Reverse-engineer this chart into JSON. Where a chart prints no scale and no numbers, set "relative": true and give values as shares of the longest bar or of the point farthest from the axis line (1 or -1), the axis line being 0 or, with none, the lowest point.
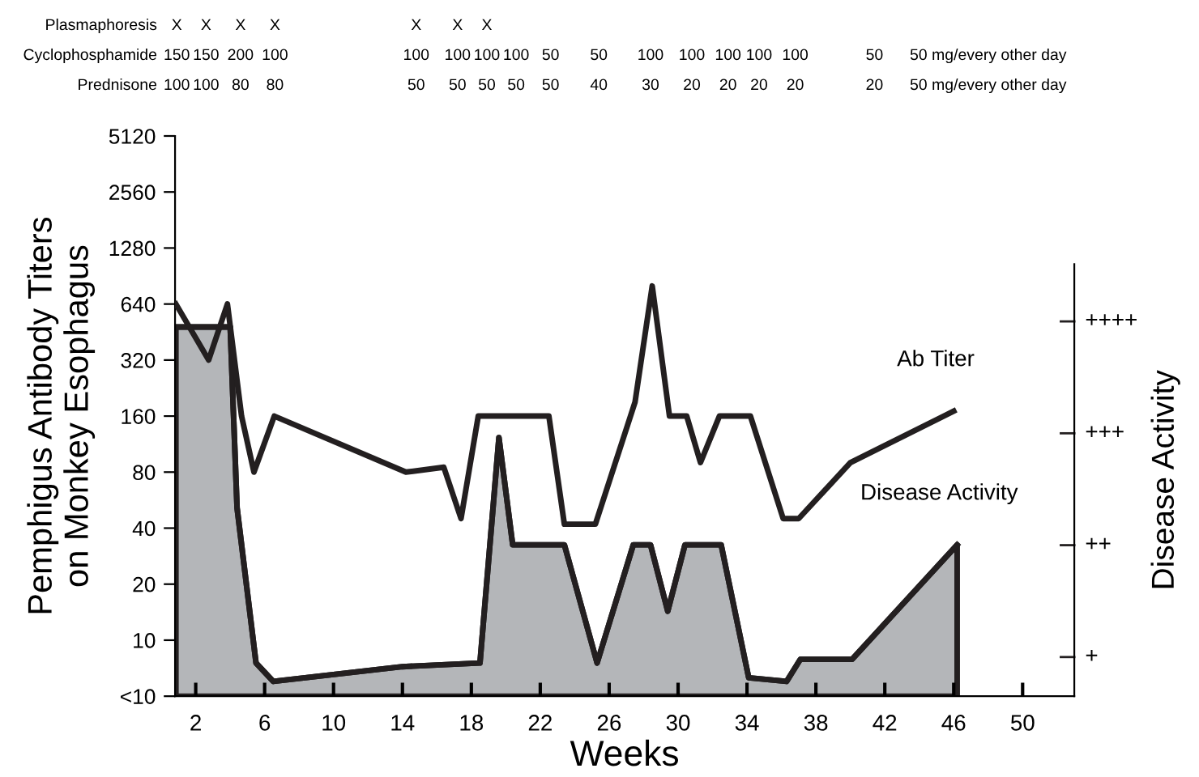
{
  "chart_data": [
    {
      "type": "line",
      "xlabel": "Weeks",
      "ylabel": "Pemphigus Antibody Titers\non Monkey Esophagus",
      "x": [
        0.85,
        2.75,
        3.84,
        4.66,
        5.38,
        6.56,
        14.2,
        16.4,
        17.4,
        18.4,
        22.5,
        23.4,
        25.2,
        27.5,
        28.5,
        29.5,
        30.5,
        31.3,
        32.4,
        34.2,
        36.1,
        37.0,
        40.0,
        46.0
      ],
      "series": [
        {
          "name": "Ab Titer",
          "color": "#231f20",
          "values": [
            640,
            320,
            640,
            160,
            80,
            160,
            80,
            85,
            45,
            160,
            160,
            42,
            42,
            190,
            800,
            160,
            160,
            90,
            160,
            160,
            45,
            45,
            90,
            170
          ]
        }
      ],
      "log": "y",
      "xlim": [
        0.8,
        53
      ],
      "xticks": [
        2,
        6,
        10,
        14,
        18,
        22,
        26,
        30,
        34,
        38,
        42,
        46,
        50
      ],
      "ylim": [
        5,
        5120
      ],
      "yticks": [
        {
          "value": 5,
          "label": "<10"
        },
        10,
        20,
        40,
        80,
        160,
        320,
        640,
        1280,
        2560,
        5120
      ],
      "annotations": [
        "Plasmaphoresis",
        "X",
        "X",
        "X",
        "X",
        "X",
        "X",
        "X",
        "Cyclophosphamide",
        "150",
        "150",
        "200",
        "100",
        "100",
        "100",
        "100",
        "100",
        "50",
        "50",
        "100",
        "100",
        "100",
        "100",
        "100",
        "50",
        "50 mg/every other day",
        "Prednisone",
        "100",
        "100",
        "80",
        "80",
        "50",
        "50",
        "50",
        "50",
        "50",
        "40",
        "30",
        "20",
        "20",
        "20",
        "20",
        "20",
        "50 mg/every other day"
      ]
    },
    {
      "type": "area",
      "relative": true,
      "ylabel": "Disease Activity",
      "x": [
        0.85,
        4.0,
        4.4,
        5.5,
        6.5,
        14.0,
        18.5,
        19.6,
        20.4,
        23.4,
        25.3,
        27.4,
        28.4,
        29.4,
        30.4,
        32.5,
        34.1,
        36.3,
        37.1,
        40.1,
        46.2
      ],
      "xlim": [
        0.8,
        53
      ],
      "series": [
        {
          "name": "Disease Activity",
          "color": "#b4b6b9",
          "values": [
            1,
            1,
            0.51,
            0.09,
            0.04,
            0.08,
            0.09,
            0.7,
            0.41,
            0.41,
            0.09,
            0.41,
            0.41,
            0.23,
            0.41,
            0.41,
            0.05,
            0.04,
            0.1,
            0.1,
            0.41
          ]
        }
      ],
      "annotations": [
        "+",
        "++",
        "+++",
        "++++"
      ]
    }
  ]
}
